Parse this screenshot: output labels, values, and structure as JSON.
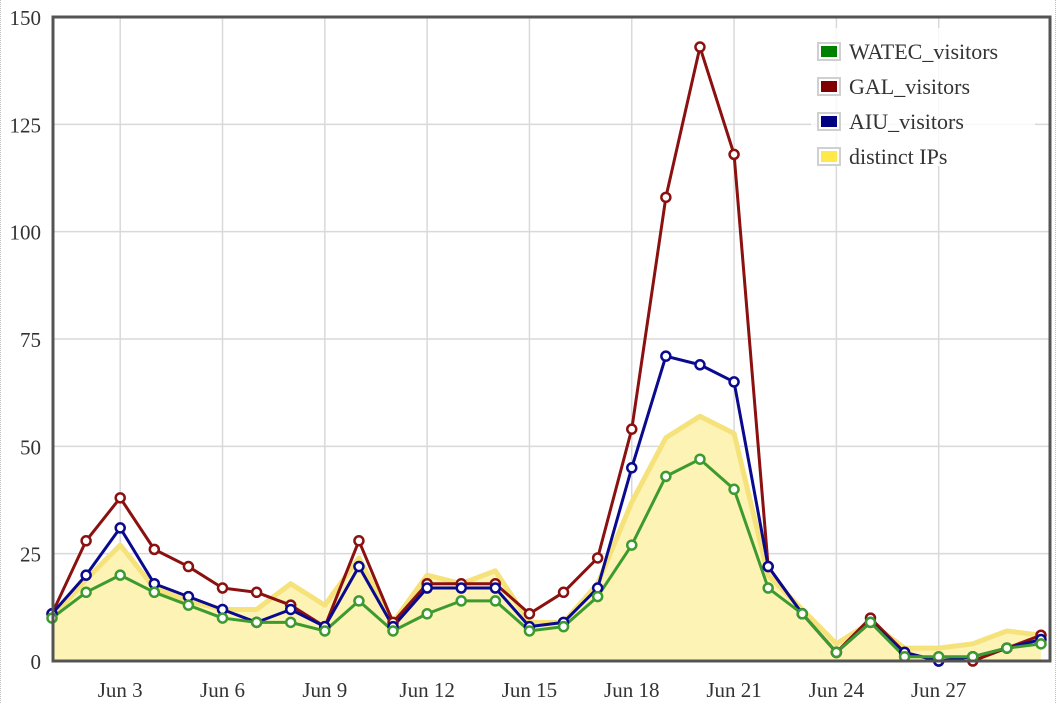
{
  "chart_data": {
    "type": "line",
    "title": "",
    "xlabel": "",
    "ylabel": "",
    "x": [
      "Jun 1",
      "Jun 2",
      "Jun 3",
      "Jun 4",
      "Jun 5",
      "Jun 6",
      "Jun 7",
      "Jun 8",
      "Jun 9",
      "Jun 10",
      "Jun 11",
      "Jun 12",
      "Jun 13",
      "Jun 14",
      "Jun 15",
      "Jun 16",
      "Jun 17",
      "Jun 18",
      "Jun 19",
      "Jun 20",
      "Jun 21",
      "Jun 22",
      "Jun 23",
      "Jun 24",
      "Jun 25",
      "Jun 26",
      "Jun 27",
      "Jun 28",
      "Jun 29",
      "Jun 30"
    ],
    "xticks": [
      "Jun 3",
      "Jun 6",
      "Jun 9",
      "Jun 12",
      "Jun 15",
      "Jun 18",
      "Jun 21",
      "Jun 24",
      "Jun 27"
    ],
    "yticks": [
      0,
      25,
      50,
      75,
      100,
      125,
      150
    ],
    "ylim": [
      0,
      150
    ],
    "grid": true,
    "legend_position": "top-right",
    "series": [
      {
        "name": "WATEC_visitors",
        "color": "#3d9a2f",
        "legend_color": "#008000",
        "values": [
          10,
          16,
          20,
          16,
          13,
          10,
          9,
          9,
          7,
          14,
          7,
          11,
          14,
          14,
          7,
          8,
          15,
          27,
          43,
          47,
          40,
          17,
          11,
          2,
          9,
          1,
          1,
          1,
          3,
          4
        ]
      },
      {
        "name": "GAL_visitors",
        "color": "#8b1010",
        "legend_color": "#800000",
        "values": [
          11,
          28,
          38,
          26,
          22,
          17,
          16,
          13,
          8,
          28,
          9,
          18,
          18,
          18,
          11,
          16,
          24,
          54,
          108,
          143,
          118,
          22,
          11,
          2,
          10,
          2,
          0,
          0,
          3,
          6
        ]
      },
      {
        "name": "AIU_visitors",
        "color": "#0a0a8e",
        "legend_color": "#000080",
        "values": [
          11,
          20,
          31,
          18,
          15,
          12,
          9,
          12,
          8,
          22,
          8,
          17,
          17,
          17,
          8,
          9,
          17,
          45,
          71,
          69,
          65,
          22,
          11,
          2,
          9,
          2,
          0,
          1,
          3,
          5
        ]
      },
      {
        "name": "distinct IPs",
        "color": "#f5e27a",
        "legend_color": "#ffe84a",
        "fill": "#fdf3b5",
        "values": [
          10,
          19,
          27,
          17,
          14,
          12,
          12,
          18,
          13,
          24,
          9,
          20,
          18,
          21,
          9,
          9,
          18,
          37,
          52,
          57,
          53,
          20,
          12,
          4,
          9,
          3,
          3,
          4,
          7,
          6
        ]
      }
    ]
  }
}
